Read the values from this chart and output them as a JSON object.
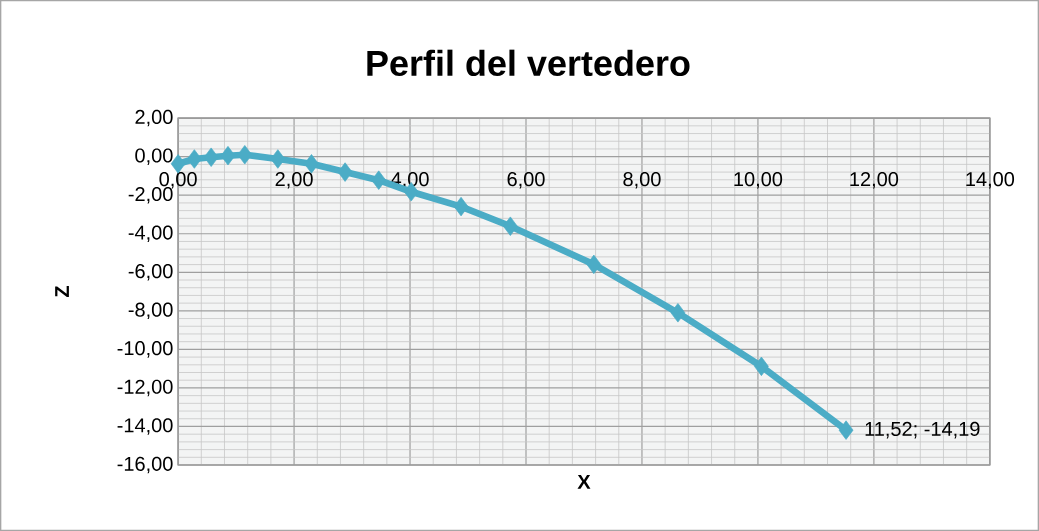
{
  "chart_data": {
    "type": "line",
    "title": "Perfil del vertedero",
    "xlabel": "X",
    "ylabel": "Z",
    "x": [
      0.0,
      0.28,
      0.57,
      0.86,
      1.15,
      1.72,
      2.3,
      2.88,
      3.46,
      4.02,
      4.88,
      5.73,
      7.17,
      8.62,
      10.06,
      11.52
    ],
    "series": [
      {
        "color": "#4bacc6",
        "values": [
          -0.37,
          -0.12,
          -0.03,
          0.05,
          0.1,
          -0.12,
          -0.37,
          -0.8,
          -1.22,
          -1.82,
          -2.59,
          -3.61,
          -5.59,
          -8.1,
          -10.88,
          -14.19
        ]
      }
    ],
    "xlim": [
      0,
      14
    ],
    "ylim": [
      -16,
      2
    ],
    "xticks": [
      {
        "value": 0,
        "label": "0,00"
      },
      {
        "value": 2,
        "label": "2,00"
      },
      {
        "value": 4,
        "label": "4,00"
      },
      {
        "value": 6,
        "label": "6,00"
      },
      {
        "value": 8,
        "label": "8,00"
      },
      {
        "value": 10,
        "label": "10,00"
      },
      {
        "value": 12,
        "label": "12,00"
      },
      {
        "value": 14,
        "label": "14,00"
      }
    ],
    "yticks": [
      {
        "value": 2,
        "label": "2,00"
      },
      {
        "value": 0,
        "label": "0,00"
      },
      {
        "value": -2,
        "label": "-2,00"
      },
      {
        "value": -4,
        "label": "-4,00"
      },
      {
        "value": -6,
        "label": "-6,00"
      },
      {
        "value": -8,
        "label": "-8,00"
      },
      {
        "value": -10,
        "label": "-10,00"
      },
      {
        "value": -12,
        "label": "-12,00"
      },
      {
        "value": -14,
        "label": "-14,00"
      },
      {
        "value": -16,
        "label": "-16,00"
      }
    ],
    "grid": true,
    "marker": "diamond",
    "annotations": [
      {
        "text": "11,52; -14,19",
        "x": 11.52,
        "y": -14.19
      }
    ]
  }
}
